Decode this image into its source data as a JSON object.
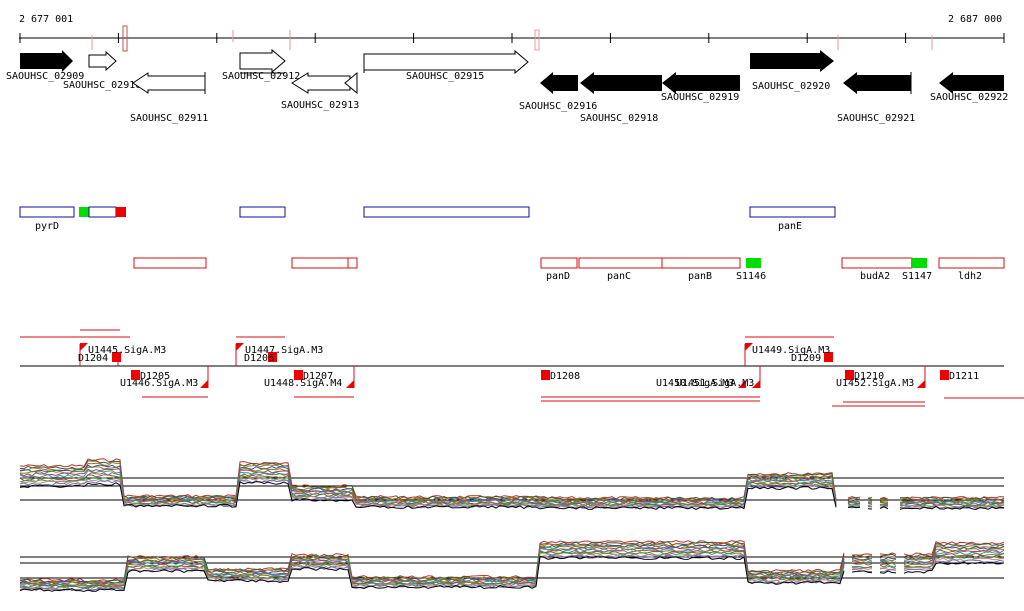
{
  "ruler": {
    "start": "2 677 001",
    "end": "2 687 000"
  },
  "genes_top": [
    {
      "label": "SAOUHSC_02909",
      "filled": true
    },
    {
      "label": "SAOUHSC_02910",
      "filled": false
    },
    {
      "label": "SAOUHSC_02911",
      "filled": false
    },
    {
      "label": "SAOUHSC_02912",
      "filled": false
    },
    {
      "label": "SAOUHSC_02913",
      "filled": false
    },
    {
      "label": "SAOUHSC_02915",
      "filled": false
    },
    {
      "label": "SAOUHSC_02916",
      "filled": true
    },
    {
      "label": "SAOUHSC_02918",
      "filled": true
    },
    {
      "label": "SAOUHSC_02919",
      "filled": true
    },
    {
      "label": "SAOUHSC_02920",
      "filled": true
    },
    {
      "label": "SAOUHSC_02921",
      "filled": true
    },
    {
      "label": "SAOUHSC_02922",
      "filled": true
    }
  ],
  "operon_labels": [
    "pyrD",
    "panE"
  ],
  "gene_names": [
    "panD",
    "panC",
    "panB",
    "S1146",
    "budA2",
    "S1147",
    "ldh2"
  ],
  "promoters": [
    "U1445.SigA.M3",
    "U1446.SigA.M3",
    "U1447.SigA.M3",
    "U1448.SigA.M4",
    "U1449.SigA.M3",
    "U1450.SigA.M3",
    "U1451.SigA.M3",
    "U1452.SigA.M3"
  ],
  "features_d": [
    "D1204",
    "D1205",
    "D1206",
    "D1207",
    "D1208",
    "D1209",
    "D1210",
    "D1211"
  ],
  "colors": {
    "gene_fill": "#000000",
    "operon_box": "#1010a0",
    "gene_box": "#d01010",
    "marker_green": "#00dd00",
    "marker_red": "#ee0000"
  }
}
